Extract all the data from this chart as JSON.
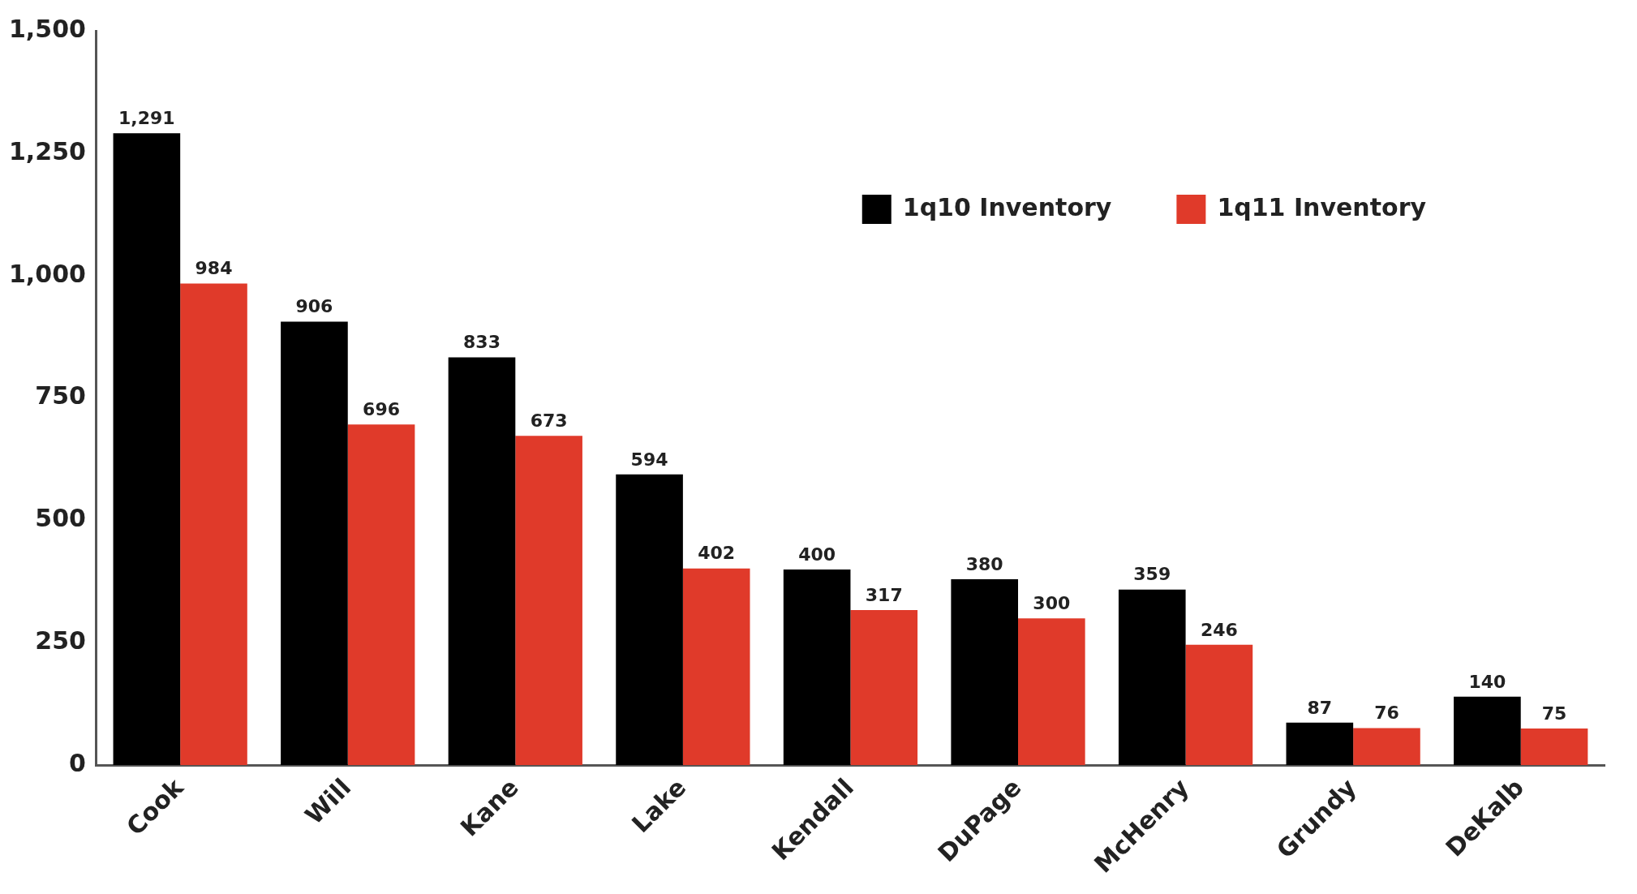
{
  "chart_data": {
    "type": "bar",
    "categories": [
      "Cook",
      "Will",
      "Kane",
      "Lake",
      "Kendall",
      "DuPage",
      "McHenry",
      "Grundy",
      "DeKalb"
    ],
    "series": [
      {
        "name": "1q10 Inventory",
        "color": "#000000",
        "values": [
          1291,
          906,
          833,
          594,
          400,
          380,
          359,
          87,
          140
        ],
        "value_labels": [
          "1,291",
          "906",
          "833",
          "594",
          "400",
          "380",
          "359",
          "87",
          "140"
        ]
      },
      {
        "name": "1q11 Inventory",
        "color": "#e03a2a",
        "values": [
          984,
          696,
          673,
          402,
          317,
          300,
          246,
          76,
          75
        ],
        "value_labels": [
          "984",
          "696",
          "673",
          "402",
          "317",
          "300",
          "246",
          "76",
          "75"
        ]
      }
    ],
    "ylim": [
      0,
      1500
    ],
    "yticks": [
      {
        "value": 0,
        "label": "0"
      },
      {
        "value": 250,
        "label": "250"
      },
      {
        "value": 500,
        "label": "500"
      },
      {
        "value": 750,
        "label": "750"
      },
      {
        "value": 1000,
        "label": "1,000"
      },
      {
        "value": 1250,
        "label": "1,250"
      },
      {
        "value": 1500,
        "label": "1,500"
      }
    ],
    "grid": false,
    "legend": "top right"
  }
}
